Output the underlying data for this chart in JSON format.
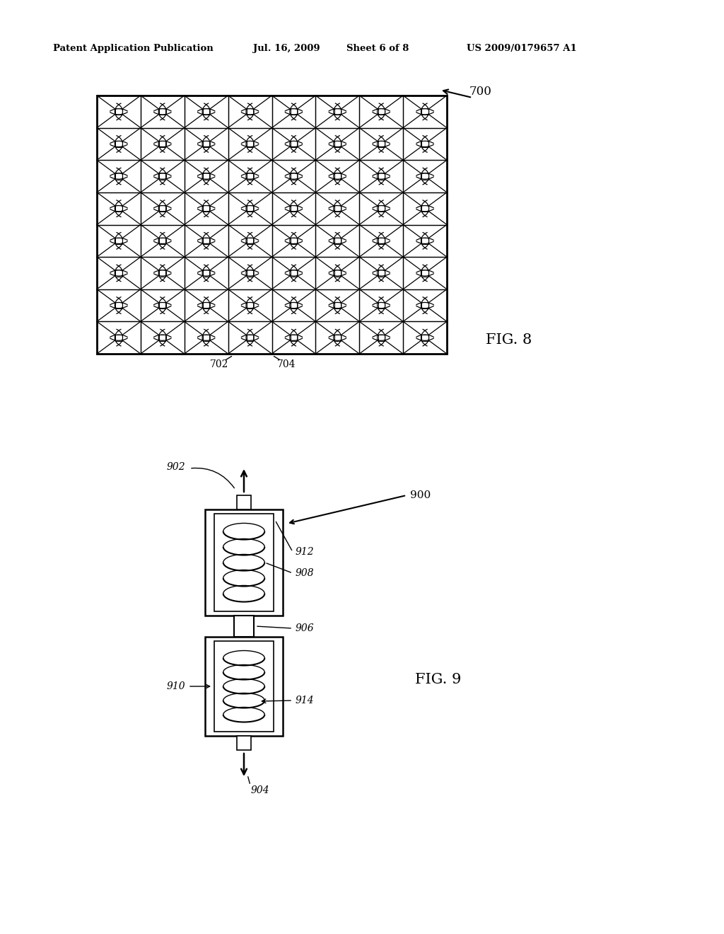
{
  "bg_color": "#ffffff",
  "header_text": "Patent Application Publication",
  "header_date": "Jul. 16, 2009",
  "header_sheet": "Sheet 6 of 8",
  "header_patent": "US 2009/0179657 A1",
  "fig8_label": "FIG. 8",
  "fig9_label": "FIG. 9",
  "grid_label": "700",
  "grid_label_702": "702",
  "grid_label_704": "704",
  "label_900": "900",
  "label_902": "902",
  "label_904": "904",
  "label_906": "906",
  "label_908": "908",
  "label_910": "910",
  "label_912": "912",
  "label_914": "914",
  "grid_rows": 8,
  "grid_cols": 8,
  "gx0": 0.135,
  "gy0": 0.555,
  "gw": 0.485,
  "gh": 0.355
}
